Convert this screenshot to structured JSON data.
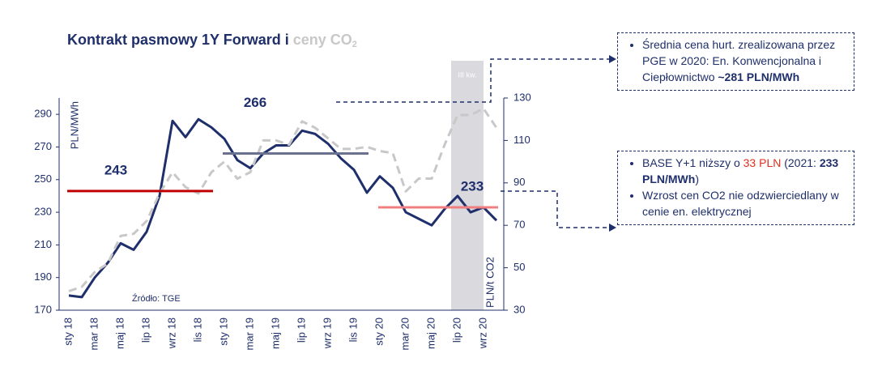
{
  "chart_data": {
    "type": "line",
    "title": "Kontrakt pasmowy 1Y Forward i",
    "title_highlight": "ceny CO",
    "title_subscript": "2",
    "y_label": "PLN/MWh",
    "y2_label": "PLN/t CO2",
    "source": "Źródło: TGE",
    "categories": [
      "sty 18",
      null,
      "mar 18",
      null,
      "maj 18",
      null,
      "lip 18",
      null,
      "wrz 18",
      null,
      "lis 18",
      null,
      "sty 19",
      null,
      "mar 19",
      null,
      "maj 19",
      null,
      "lip 19",
      null,
      "wrz 19",
      null,
      "lis 19",
      null,
      "sty 20",
      null,
      "mar 20",
      null,
      "maj 20",
      null,
      "lip 20",
      null,
      "wrz 20",
      null
    ],
    "ylim": [
      170,
      300
    ],
    "yticks": [
      170,
      190,
      210,
      230,
      250,
      270,
      290
    ],
    "y2lim": [
      30,
      130
    ],
    "y2ticks": [
      30,
      50,
      70,
      90,
      110,
      130
    ],
    "highlight": {
      "label": "III kw.",
      "start": 30,
      "end": 32,
      "color": "#d9d9de"
    },
    "series": [
      {
        "color": "#1f2f6b",
        "style": "solid",
        "width": 3,
        "values": [
          179,
          178,
          190,
          199,
          211,
          207,
          218,
          240,
          286,
          276,
          287,
          282,
          275,
          262,
          257,
          266,
          271,
          271,
          280,
          278,
          272,
          263,
          256,
          242,
          252,
          245,
          230,
          226,
          222,
          232,
          240,
          230,
          233,
          225
        ]
      },
      {
        "color": "#c8c8c8",
        "style": "dashed",
        "width": 3,
        "axis": "y2",
        "values": [
          39,
          41,
          48,
          52,
          65,
          66,
          72,
          85,
          95,
          88,
          85,
          95,
          100,
          92,
          95,
          110,
          110,
          108,
          119,
          116,
          111,
          106,
          106,
          107,
          105,
          104,
          86,
          92,
          92,
          108,
          122,
          122,
          125,
          116
        ]
      },
      {
        "color": "#c00000",
        "style": "solid",
        "width": 3,
        "labelled": true,
        "values": [
          243,
          243,
          243,
          243,
          243,
          243,
          243,
          243,
          243,
          243,
          243,
          243,
          null,
          null,
          null,
          null,
          null,
          null,
          null,
          null,
          null,
          null,
          null,
          null,
          null,
          null,
          null,
          null,
          null,
          null,
          null,
          null,
          null,
          null
        ]
      },
      {
        "color": "#6b7290",
        "style": "solid",
        "width": 3,
        "labelled": true,
        "values": [
          null,
          null,
          null,
          null,
          null,
          null,
          null,
          null,
          null,
          null,
          null,
          null,
          266,
          266,
          266,
          266,
          266,
          266,
          266,
          266,
          266,
          266,
          266,
          266,
          null,
          null,
          null,
          null,
          null,
          null,
          null,
          null,
          null,
          null
        ]
      },
      {
        "color": "#f08080",
        "style": "solid",
        "width": 3,
        "labelled": true,
        "values": [
          null,
          null,
          null,
          null,
          null,
          null,
          null,
          null,
          null,
          null,
          null,
          null,
          null,
          null,
          null,
          null,
          null,
          null,
          null,
          null,
          null,
          null,
          null,
          null,
          233,
          233,
          233,
          233,
          233,
          233,
          233,
          233,
          233,
          233
        ]
      }
    ]
  },
  "notes": [
    {
      "items": [
        [
          {
            "text": "Średnia cena hurt. zrealizowana przez PGE w 2020: En. Konwencjonalna i Ciepłownictwo "
          },
          {
            "text": "~281 PLN/MWh",
            "style": "bold"
          }
        ]
      ]
    },
    {
      "items": [
        [
          {
            "text": "BASE Y+1 niższy o "
          },
          {
            "text": "33 PLN",
            "style": "red"
          },
          {
            "text": " (2021: "
          },
          {
            "text": "233 PLN/MWh",
            "style": "bold"
          },
          {
            "text": ")"
          }
        ],
        [
          {
            "text": "Wzrost cen CO2 nie odzwierciedlany w cenie en. elektrycznej"
          }
        ]
      ]
    }
  ]
}
